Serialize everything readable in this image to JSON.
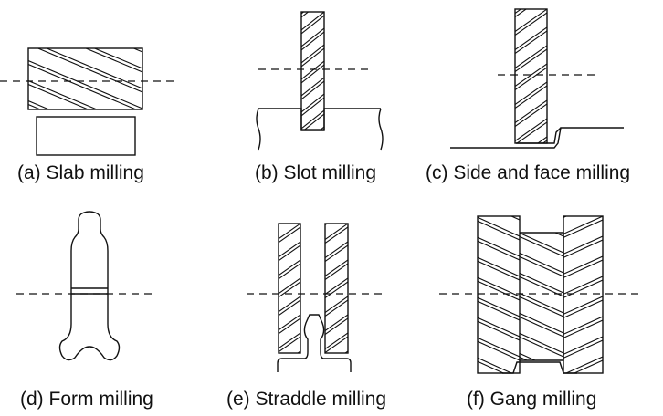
{
  "panels": [
    {
      "id": "a",
      "caption": "(a) Slab milling"
    },
    {
      "id": "b",
      "caption": "(b) Slot milling"
    },
    {
      "id": "c",
      "caption": "(c) Side and face milling"
    },
    {
      "id": "d",
      "caption": "(d) Form milling"
    },
    {
      "id": "e",
      "caption": "(e) Straddle milling"
    },
    {
      "id": "f",
      "caption": "(f) Gang milling"
    }
  ]
}
